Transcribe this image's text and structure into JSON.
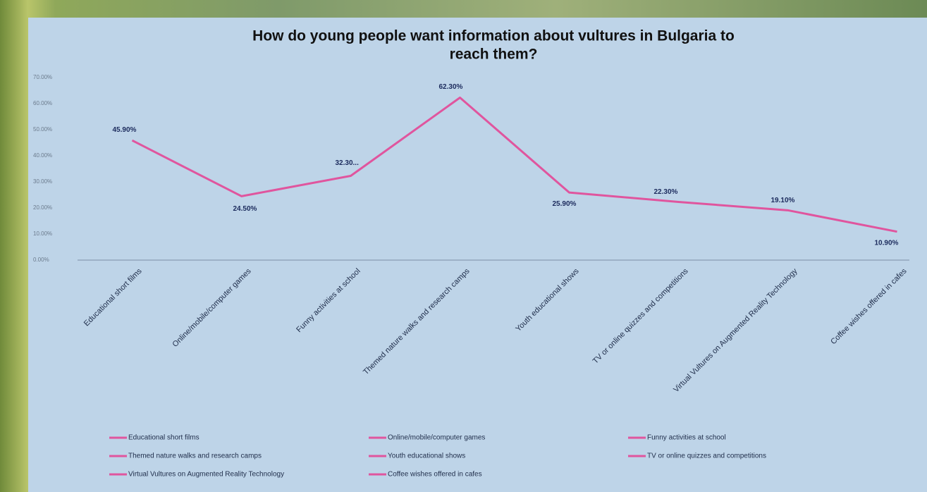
{
  "chart_data": {
    "type": "line",
    "title": [
      "How do young people want information about vultures in Bulgaria to",
      "reach them?"
    ],
    "categories": [
      "Educational short films",
      "Online/mobile/computer games",
      "Funny activities at school",
      "Themed nature walks and research camps",
      "Youth educational shows",
      "TV or online quizzes and competitions",
      "Virtual Vultures on Augmented Reality Technology",
      "Coffee wishes offered in cafes"
    ],
    "values": [
      45.9,
      24.5,
      32.3,
      62.3,
      25.9,
      22.3,
      19.1,
      10.9
    ],
    "value_labels": [
      "45.90%",
      "24.50%",
      "32.30...",
      "62.30%",
      "25.90%",
      "22.30%",
      "19.10%",
      "10.90%"
    ],
    "color": "#e0559e",
    "ylim": [
      0,
      70
    ],
    "yticks": [
      {
        "value": 0,
        "label": "0.00%"
      },
      {
        "value": 10,
        "label": "10.00%"
      },
      {
        "value": 20,
        "label": "20.00%"
      },
      {
        "value": 30,
        "label": "30.00%"
      },
      {
        "value": 40,
        "label": "40.00%"
      },
      {
        "value": 50,
        "label": "50.00%"
      },
      {
        "value": 60,
        "label": "60.00%"
      },
      {
        "value": 70,
        "label": "70.00%"
      }
    ],
    "grid": false
  }
}
